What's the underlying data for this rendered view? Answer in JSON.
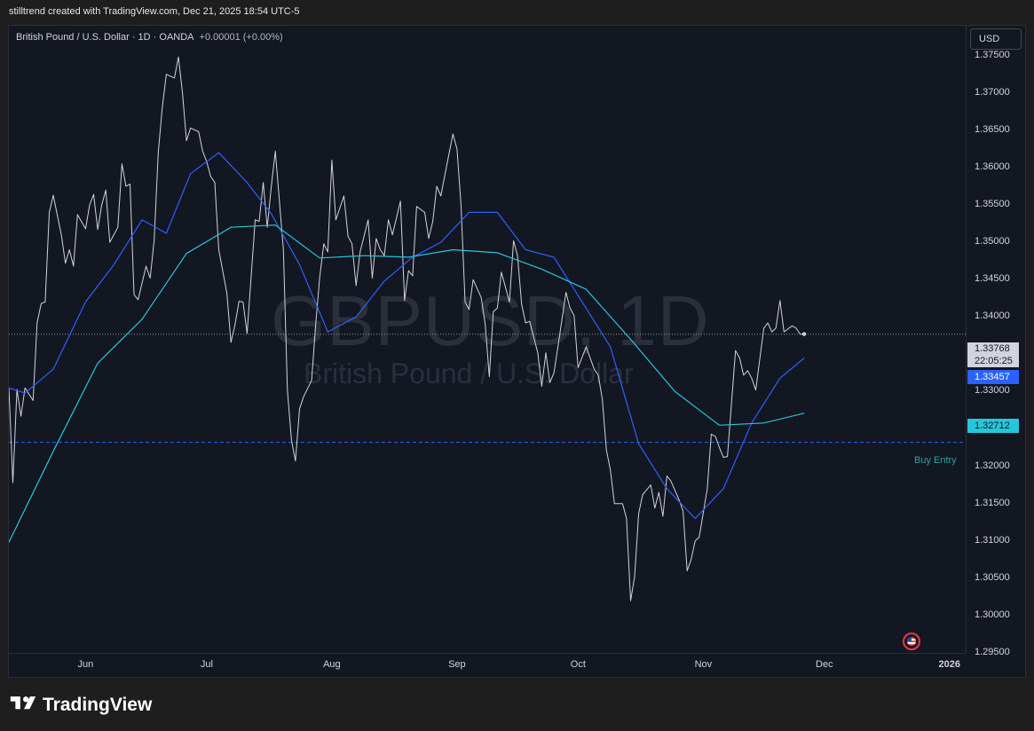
{
  "header": {
    "attribution": "stilltrend created with TradingView.com, Dec 21, 2025 18:54 UTC-5"
  },
  "legend": {
    "symbol_line": "British Pound / U.S. Dollar · 1D · OANDA",
    "change": "+0.00001 (+0.00%)"
  },
  "watermark": {
    "ticker": "GBPUSD, 1D",
    "name": "British Pound / U.S. Dollar"
  },
  "price_axis": {
    "currency_button": "USD"
  },
  "badges": {
    "last_price": "1.33768",
    "countdown": "22:05:25",
    "ma_fast": "1.33457",
    "ma_slow": "1.32712"
  },
  "annotation": {
    "buy_entry_label": "Buy Entry"
  },
  "footer": {
    "brand": "TradingView"
  },
  "colors": {
    "background": "#131722",
    "price_line": "#d1d4dc",
    "ma_fast": "#2962ff",
    "ma_slow": "#26c6da",
    "buy_entry": "#2962ff",
    "grid_dots": "#9598a1"
  },
  "chart_data": {
    "type": "line",
    "title": "British Pound / U.S. Dollar · 1D · OANDA",
    "x_tick_labels": [
      "Jun",
      "Jul",
      "Aug",
      "Sep",
      "Oct",
      "Nov",
      "Dec",
      "2026"
    ],
    "y_tick_labels": [
      "1.37500",
      "1.37000",
      "1.36500",
      "1.36000",
      "1.35500",
      "1.35000",
      "1.34500",
      "1.34000",
      "1.33500",
      "1.33000",
      "1.32500",
      "1.32000",
      "1.31500",
      "1.31000",
      "1.30500",
      "1.30000",
      "1.29500"
    ],
    "ylim": [
      1.295,
      1.379
    ],
    "xlim": [
      "2025-05-13",
      "2026-01-05"
    ],
    "grid": false,
    "buy_entry_level": 1.3232,
    "last_price_level": 1.33768,
    "series": [
      {
        "name": "GBPUSD",
        "points": [
          [
            "2025-05-13",
            1.3305
          ],
          [
            "2025-05-14",
            1.3178
          ],
          [
            "2025-05-15",
            1.3303
          ],
          [
            "2025-05-16",
            1.3267
          ],
          [
            "2025-05-17",
            1.3305
          ],
          [
            "2025-05-19",
            1.3288
          ],
          [
            "2025-05-20",
            1.3392
          ],
          [
            "2025-05-21",
            1.3418
          ],
          [
            "2025-05-22",
            1.342
          ],
          [
            "2025-05-23",
            1.354
          ],
          [
            "2025-05-24",
            1.3563
          ],
          [
            "2025-05-26",
            1.351
          ],
          [
            "2025-05-27",
            1.3472
          ],
          [
            "2025-05-28",
            1.349
          ],
          [
            "2025-05-29",
            1.3468
          ],
          [
            "2025-05-30",
            1.3537
          ],
          [
            "2025-06-01",
            1.3518
          ],
          [
            "2025-06-02",
            1.355
          ],
          [
            "2025-06-03",
            1.3564
          ],
          [
            "2025-06-04",
            1.3517
          ],
          [
            "2025-06-05",
            1.355
          ],
          [
            "2025-06-06",
            1.357
          ],
          [
            "2025-06-07",
            1.35
          ],
          [
            "2025-06-09",
            1.352
          ],
          [
            "2025-06-10",
            1.3605
          ],
          [
            "2025-06-11",
            1.3575
          ],
          [
            "2025-06-12",
            1.3578
          ],
          [
            "2025-06-13",
            1.343
          ],
          [
            "2025-06-14",
            1.3423
          ],
          [
            "2025-06-16",
            1.3468
          ],
          [
            "2025-06-17",
            1.3452
          ],
          [
            "2025-06-18",
            1.3503
          ],
          [
            "2025-06-19",
            1.362
          ],
          [
            "2025-06-20",
            1.368
          ],
          [
            "2025-06-21",
            1.3725
          ],
          [
            "2025-06-23",
            1.372
          ],
          [
            "2025-06-24",
            1.3748
          ],
          [
            "2025-06-25",
            1.37
          ],
          [
            "2025-06-26",
            1.3636
          ],
          [
            "2025-06-27",
            1.3653
          ],
          [
            "2025-06-29",
            1.3648
          ],
          [
            "2025-06-30",
            1.3622
          ],
          [
            "2025-07-01",
            1.3608
          ],
          [
            "2025-07-02",
            1.3588
          ],
          [
            "2025-07-03",
            1.358
          ],
          [
            "2025-07-04",
            1.349
          ],
          [
            "2025-07-06",
            1.3432
          ],
          [
            "2025-07-07",
            1.3366
          ],
          [
            "2025-07-08",
            1.3389
          ],
          [
            "2025-07-09",
            1.3421
          ],
          [
            "2025-07-10",
            1.342
          ],
          [
            "2025-07-11",
            1.3378
          ],
          [
            "2025-07-13",
            1.353
          ],
          [
            "2025-07-14",
            1.3528
          ],
          [
            "2025-07-15",
            1.358
          ],
          [
            "2025-07-16",
            1.352
          ],
          [
            "2025-07-17",
            1.3575
          ],
          [
            "2025-07-18",
            1.3622
          ],
          [
            "2025-07-20",
            1.349
          ],
          [
            "2025-07-21",
            1.3302
          ],
          [
            "2025-07-22",
            1.3235
          ],
          [
            "2025-07-23",
            1.3207
          ],
          [
            "2025-07-24",
            1.3277
          ],
          [
            "2025-07-25",
            1.3293
          ],
          [
            "2025-07-27",
            1.3315
          ],
          [
            "2025-07-28",
            1.339
          ],
          [
            "2025-07-29",
            1.3453
          ],
          [
            "2025-07-30",
            1.3498
          ],
          [
            "2025-07-31",
            1.3487
          ],
          [
            "2025-08-01",
            1.361
          ],
          [
            "2025-08-02",
            1.353
          ],
          [
            "2025-08-04",
            1.3562
          ],
          [
            "2025-08-05",
            1.3508
          ],
          [
            "2025-08-06",
            1.3498
          ],
          [
            "2025-08-07",
            1.3442
          ],
          [
            "2025-08-08",
            1.3487
          ],
          [
            "2025-08-10",
            1.353
          ],
          [
            "2025-08-11",
            1.3452
          ],
          [
            "2025-08-12",
            1.3505
          ],
          [
            "2025-08-13",
            1.349
          ],
          [
            "2025-08-14",
            1.3482
          ],
          [
            "2025-08-15",
            1.353
          ],
          [
            "2025-08-16",
            1.351
          ],
          [
            "2025-08-18",
            1.3555
          ],
          [
            "2025-08-19",
            1.3422
          ],
          [
            "2025-08-20",
            1.3462
          ],
          [
            "2025-08-21",
            1.3455
          ],
          [
            "2025-08-22",
            1.3548
          ],
          [
            "2025-08-24",
            1.354
          ],
          [
            "2025-08-25",
            1.3505
          ],
          [
            "2025-08-26",
            1.3528
          ],
          [
            "2025-08-27",
            1.3575
          ],
          [
            "2025-08-28",
            1.3562
          ],
          [
            "2025-08-29",
            1.359
          ],
          [
            "2025-08-31",
            1.3645
          ],
          [
            "2025-09-01",
            1.3625
          ],
          [
            "2025-09-02",
            1.355
          ],
          [
            "2025-09-03",
            1.342
          ],
          [
            "2025-09-04",
            1.341
          ],
          [
            "2025-09-05",
            1.345
          ],
          [
            "2025-09-07",
            1.3426
          ],
          [
            "2025-09-08",
            1.339
          ],
          [
            "2025-09-09",
            1.332
          ],
          [
            "2025-09-10",
            1.3407
          ],
          [
            "2025-09-11",
            1.3412
          ],
          [
            "2025-09-12",
            1.346
          ],
          [
            "2025-09-14",
            1.342
          ],
          [
            "2025-09-15",
            1.3502
          ],
          [
            "2025-09-16",
            1.3482
          ],
          [
            "2025-09-17",
            1.3417
          ],
          [
            "2025-09-18",
            1.3392
          ],
          [
            "2025-09-19",
            1.3394
          ],
          [
            "2025-09-21",
            1.3352
          ],
          [
            "2025-09-22",
            1.3307
          ],
          [
            "2025-09-23",
            1.3352
          ],
          [
            "2025-09-24",
            1.3312
          ],
          [
            "2025-09-25",
            1.3325
          ],
          [
            "2025-09-26",
            1.336
          ],
          [
            "2025-09-28",
            1.3433
          ],
          [
            "2025-09-29",
            1.3412
          ],
          [
            "2025-09-30",
            1.3402
          ],
          [
            "2025-10-01",
            1.3332
          ],
          [
            "2025-10-02",
            1.3346
          ],
          [
            "2025-10-03",
            1.336
          ],
          [
            "2025-10-05",
            1.333
          ],
          [
            "2025-10-06",
            1.3322
          ],
          [
            "2025-10-07",
            1.329
          ],
          [
            "2025-10-08",
            1.3222
          ],
          [
            "2025-10-09",
            1.3195
          ],
          [
            "2025-10-10",
            1.315
          ],
          [
            "2025-10-12",
            1.315
          ],
          [
            "2025-10-13",
            1.313
          ],
          [
            "2025-10-14",
            1.302
          ],
          [
            "2025-10-15",
            1.3052
          ],
          [
            "2025-10-16",
            1.3137
          ],
          [
            "2025-10-17",
            1.3162
          ],
          [
            "2025-10-19",
            1.3175
          ],
          [
            "2025-10-20",
            1.3144
          ],
          [
            "2025-10-21",
            1.3165
          ],
          [
            "2025-10-22",
            1.3133
          ],
          [
            "2025-10-23",
            1.3187
          ],
          [
            "2025-10-24",
            1.318
          ],
          [
            "2025-10-26",
            1.3155
          ],
          [
            "2025-10-27",
            1.314
          ],
          [
            "2025-10-28",
            1.306
          ],
          [
            "2025-10-29",
            1.3075
          ],
          [
            "2025-10-30",
            1.31
          ],
          [
            "2025-10-31",
            1.3105
          ],
          [
            "2025-11-02",
            1.317
          ],
          [
            "2025-11-03",
            1.3243
          ],
          [
            "2025-11-04",
            1.324
          ],
          [
            "2025-11-05",
            1.3225
          ],
          [
            "2025-11-06",
            1.3212
          ],
          [
            "2025-11-07",
            1.3213
          ],
          [
            "2025-11-09",
            1.3355
          ],
          [
            "2025-11-10",
            1.3345
          ],
          [
            "2025-11-11",
            1.3322
          ],
          [
            "2025-11-12",
            1.3328
          ],
          [
            "2025-11-13",
            1.3318
          ],
          [
            "2025-11-14",
            1.3302
          ],
          [
            "2025-11-16",
            1.3385
          ],
          [
            "2025-11-17",
            1.3392
          ],
          [
            "2025-11-18",
            1.338
          ],
          [
            "2025-11-19",
            1.3385
          ],
          [
            "2025-11-20",
            1.3422
          ],
          [
            "2025-11-21",
            1.338
          ],
          [
            "2025-11-23",
            1.3388
          ],
          [
            "2025-11-24",
            1.3385
          ],
          [
            "2025-11-25",
            1.3377
          ],
          [
            "2025-11-26",
            1.3377
          ]
        ]
      },
      {
        "name": "MA fast",
        "points": [
          [
            "2025-05-13",
            1.3305
          ],
          [
            "2025-05-17",
            1.3298
          ],
          [
            "2025-05-24",
            1.333
          ],
          [
            "2025-06-01",
            1.342
          ],
          [
            "2025-06-08",
            1.347
          ],
          [
            "2025-06-15",
            1.353
          ],
          [
            "2025-06-21",
            1.3512
          ],
          [
            "2025-06-27",
            1.3592
          ],
          [
            "2025-07-04",
            1.362
          ],
          [
            "2025-07-11",
            1.358
          ],
          [
            "2025-07-17",
            1.3538
          ],
          [
            "2025-07-24",
            1.347
          ],
          [
            "2025-07-31",
            1.338
          ],
          [
            "2025-08-07",
            1.34
          ],
          [
            "2025-08-14",
            1.3448
          ],
          [
            "2025-08-21",
            1.348
          ],
          [
            "2025-08-28",
            1.35
          ],
          [
            "2025-09-04",
            1.354
          ],
          [
            "2025-09-11",
            1.354
          ],
          [
            "2025-09-18",
            1.349
          ],
          [
            "2025-09-25",
            1.348
          ],
          [
            "2025-10-02",
            1.342
          ],
          [
            "2025-10-09",
            1.336
          ],
          [
            "2025-10-16",
            1.323
          ],
          [
            "2025-10-23",
            1.317
          ],
          [
            "2025-10-30",
            1.313
          ],
          [
            "2025-11-06",
            1.317
          ],
          [
            "2025-11-13",
            1.3258
          ],
          [
            "2025-11-20",
            1.3318
          ],
          [
            "2025-11-26",
            1.3345
          ]
        ]
      },
      {
        "name": "MA slow",
        "points": [
          [
            "2025-05-13",
            1.3098
          ],
          [
            "2025-05-24",
            1.322
          ],
          [
            "2025-06-04",
            1.3338
          ],
          [
            "2025-06-15",
            1.3397
          ],
          [
            "2025-06-26",
            1.3485
          ],
          [
            "2025-07-07",
            1.352
          ],
          [
            "2025-07-18",
            1.3523
          ],
          [
            "2025-07-29",
            1.3479
          ],
          [
            "2025-08-09",
            1.3482
          ],
          [
            "2025-08-20",
            1.348
          ],
          [
            "2025-08-31",
            1.349
          ],
          [
            "2025-09-11",
            1.3486
          ],
          [
            "2025-09-22",
            1.3464
          ],
          [
            "2025-10-03",
            1.3437
          ],
          [
            "2025-10-14",
            1.337
          ],
          [
            "2025-10-25",
            1.33
          ],
          [
            "2025-11-05",
            1.3255
          ],
          [
            "2025-11-16",
            1.3258
          ],
          [
            "2025-11-26",
            1.3271
          ]
        ]
      }
    ]
  }
}
